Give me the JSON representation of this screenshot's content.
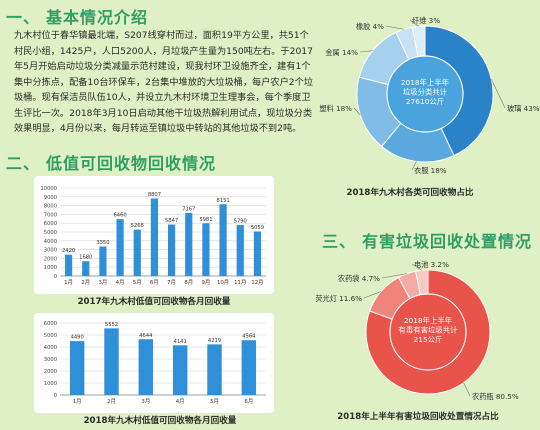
{
  "sections": {
    "s1_num": "一、",
    "s1_title": "基本情况介绍",
    "s2_num": "二、",
    "s2_title": "低值可回收物回收情况",
    "s3_num": "三、",
    "s3_title": "有害垃圾回收处置情况"
  },
  "intro_text": "九木村位于春华镇最北端，S207线穿村而过，面积19平方公里，共51个村民小组，1425户，人口5200人，月垃圾产生量为150吨左右。于2017年5月开始启动垃圾分类减量示范村建设，现我村环卫设施齐全，建有1个集中分拣点，配备10台环保车，2台集中堆放的大垃圾桶，每户农户2个垃圾桶。现有保洁员队伍10人，并设立九木村环境卫生理事会，每个季度卫生评比一次。2018年3月10日启动其他干垃圾热解利用试点，现垃圾分类效果明显，4月份以来，每月转运至镇垃圾中转站的其他垃圾不到2吨。",
  "chart_data": [
    {
      "type": "bar",
      "title": "2017年九木村低值可回收物各月回收量",
      "categories": [
        "1月",
        "2月",
        "3月",
        "4月",
        "5月",
        "6月",
        "7月",
        "8月",
        "9月",
        "10月",
        "11月",
        "12月"
      ],
      "values": [
        2420,
        1680,
        3350,
        6460,
        5268,
        8807,
        5847,
        7167,
        5981,
        8151,
        5790,
        5059
      ],
      "ylim": [
        0,
        10000
      ],
      "yticks": [
        0,
        1000,
        2000,
        3000,
        4000,
        5000,
        6000,
        7000,
        8000,
        9000,
        10000
      ],
      "color": "#2f8fd8",
      "grid": true
    },
    {
      "type": "bar",
      "title": "2018年九木村低值可回收物各月回收量",
      "categories": [
        "1月",
        "2月",
        "3月",
        "4月",
        "5月",
        "6月"
      ],
      "values": [
        4490,
        5552,
        4644,
        4141,
        4219,
        4564
      ],
      "ylim": [
        0,
        6000
      ],
      "yticks": [
        0,
        1000,
        2000,
        3000,
        4000,
        5000,
        6000
      ],
      "color": "#2f8fd8",
      "grid": true
    },
    {
      "type": "pie",
      "title": "2018年九木村各类可回收物占比",
      "center_text": [
        "2018年上半年",
        "垃圾分类共计",
        "27610公斤"
      ],
      "slices": [
        {
          "label": "玻璃",
          "value": 43,
          "text": "玻璃 43%",
          "color": "#2a82c8"
        },
        {
          "label": "衣服",
          "value": 18,
          "text": "衣服 18%",
          "color": "#5aa8de"
        },
        {
          "label": "塑料",
          "value": 18,
          "text": "塑料 18%",
          "color": "#7fbde6"
        },
        {
          "label": "金属",
          "value": 14,
          "text": "金属 14%",
          "color": "#a5d0ee"
        },
        {
          "label": "橡胶",
          "value": 4,
          "text": "橡胶 4%",
          "color": "#c6e1f4"
        },
        {
          "label": "纤维",
          "value": 3,
          "text": "纤维 3%",
          "color": "#ddeef9"
        }
      ]
    },
    {
      "type": "pie",
      "title": "2018年上半年有害垃圾回收处置情况占比",
      "center_text": [
        "2018年上半年",
        "有毒有害垃圾共计",
        "215公斤"
      ],
      "slices": [
        {
          "label": "农药瓶",
          "value": 80.5,
          "text": "农药瓶 80.5%",
          "color": "#e8534a"
        },
        {
          "label": "荧光灯",
          "value": 11.6,
          "text": "荧光灯 11.6%",
          "color": "#f0837a"
        },
        {
          "label": "农药袋",
          "value": 4.7,
          "text": "农药袋 4.7%",
          "color": "#f5aaa3"
        },
        {
          "label": "电池",
          "value": 3.2,
          "text": "电池 3.2%",
          "color": "#f8c9c4"
        }
      ]
    }
  ]
}
